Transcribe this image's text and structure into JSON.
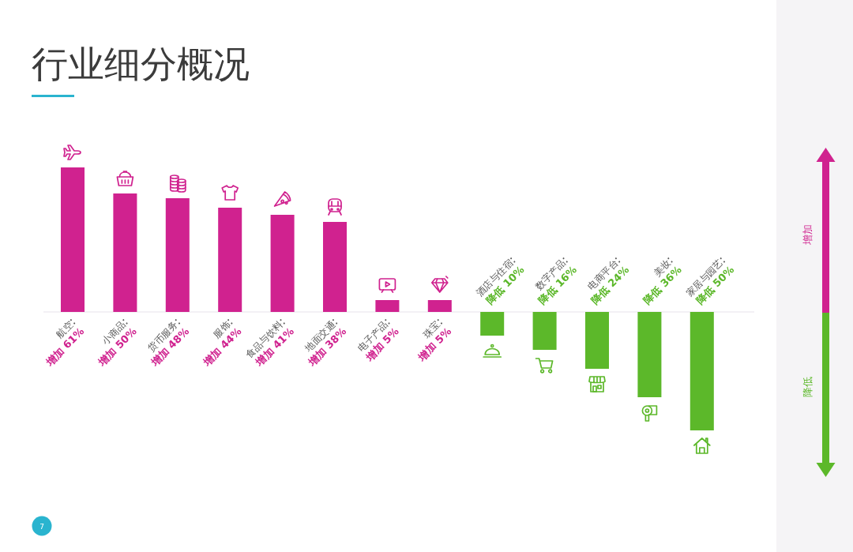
{
  "chart_data": {
    "type": "bar",
    "title": "行业细分概况",
    "categories": [
      "航空",
      "小商品",
      "货币服务",
      "服饰",
      "食品与饮料",
      "地面交通",
      "电子产品",
      "珠宝",
      "酒店与住宿",
      "数字产品",
      "电商平台",
      "美妆",
      "家居与园艺"
    ],
    "values": [
      61,
      50,
      48,
      44,
      41,
      38,
      5,
      5,
      -10,
      -16,
      -24,
      -36,
      -50
    ],
    "colors": [
      "#d0228f",
      "#d0228f",
      "#d0228f",
      "#d0228f",
      "#d0228f",
      "#d0228f",
      "#d0228f",
      "#d0228f",
      "#5cb82a",
      "#5cb82a",
      "#5cb82a",
      "#5cb82a",
      "#5cb82a"
    ],
    "value_labels": [
      "增加 61%",
      "增加 50%",
      "增加 48%",
      "增加 44%",
      "增加 41%",
      "增加 38%",
      "增加 5%",
      "增加 5%",
      "降低 10%",
      "降低 16%",
      "降低 24%",
      "降低 36%",
      "降低 50%"
    ],
    "annotations": [
      "增加",
      "降低",
      "7"
    ]
  }
}
